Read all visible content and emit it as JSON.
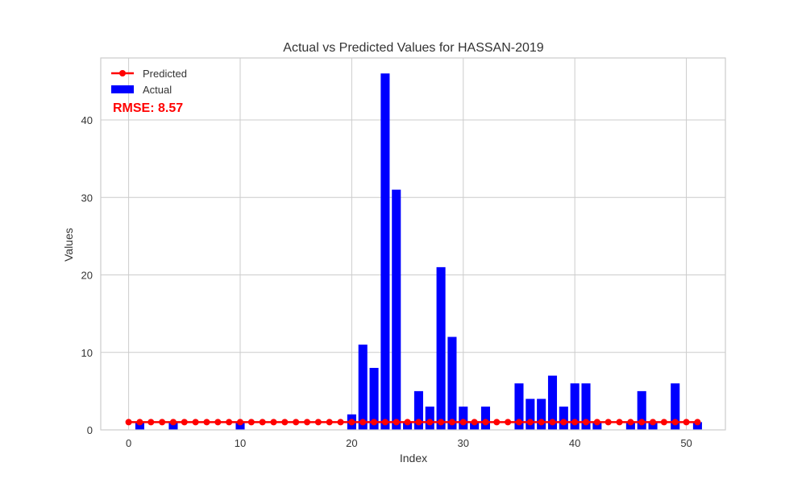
{
  "chart_data": {
    "type": "bar",
    "title": "Actual vs Predicted Values for HASSAN-2019",
    "xlabel": "Index",
    "ylabel": "Values",
    "xlim": [
      -2.5,
      53.5
    ],
    "ylim": [
      0,
      48
    ],
    "x_ticks": [
      0,
      10,
      20,
      30,
      40,
      50
    ],
    "y_ticks": [
      0,
      10,
      20,
      30,
      40
    ],
    "grid": true,
    "legend_position": "top-left",
    "annotation": "RMSE: 8.57",
    "annotation_color": "#ff0000",
    "series": [
      {
        "name": "Predicted",
        "type": "line",
        "marker": "circle",
        "color": "#ff0000",
        "values": [
          1,
          1,
          1,
          1,
          1,
          1,
          1,
          1,
          1,
          1,
          1,
          1,
          1,
          1,
          1,
          1,
          1,
          1,
          1,
          1,
          1,
          1,
          1,
          1,
          1,
          1,
          1,
          1,
          1,
          1,
          1,
          1,
          1,
          1,
          1,
          1,
          1,
          1,
          1,
          1,
          1,
          1,
          1,
          1,
          1,
          1,
          1,
          1,
          1,
          1,
          1,
          1
        ]
      },
      {
        "name": "Actual",
        "type": "bar",
        "color": "#0000ff",
        "values": [
          0,
          1,
          0,
          0,
          1,
          0,
          0,
          0,
          0,
          0,
          1,
          0,
          0,
          0,
          0,
          0,
          0,
          0,
          0,
          0,
          2,
          11,
          8,
          46,
          31,
          1,
          5,
          3,
          21,
          12,
          3,
          1,
          3,
          0,
          0,
          6,
          4,
          4,
          7,
          3,
          6,
          6,
          1,
          0,
          0,
          1,
          5,
          1,
          0,
          6,
          0,
          1
        ]
      }
    ]
  }
}
